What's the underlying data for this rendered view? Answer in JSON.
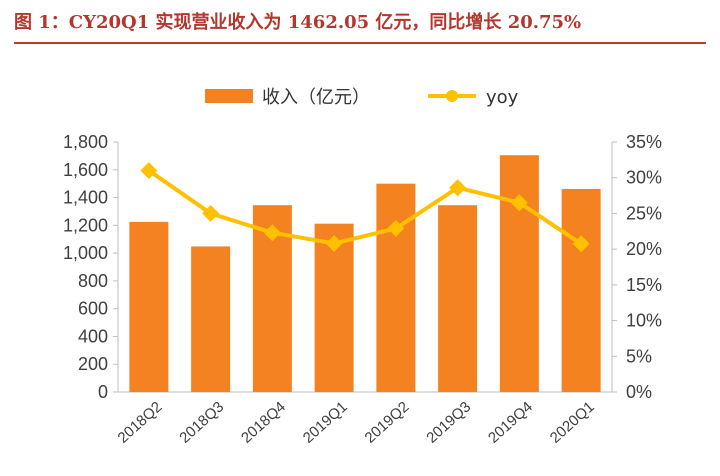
{
  "page": {
    "title": "图 1：CY20Q1 实现营业收入为 1462.05 亿元，同比增长 20.75%"
  },
  "chart_data": {
    "type": "bar",
    "categories": [
      "2018Q2",
      "2018Q3",
      "2018Q4",
      "2019Q1",
      "2019Q2",
      "2019Q3",
      "2019Q4",
      "2020Q1"
    ],
    "series": [
      {
        "name": "收入（亿元）",
        "type": "bar",
        "axis": "left",
        "color": "#f58220",
        "values": [
          1225,
          1048,
          1345,
          1212,
          1500,
          1345,
          1705,
          1462.05
        ]
      },
      {
        "name": "yoy",
        "type": "line",
        "axis": "right",
        "color": "#ffc000",
        "values": [
          31.0,
          25.0,
          22.3,
          20.8,
          22.9,
          28.6,
          26.5,
          20.75
        ]
      }
    ],
    "left_axis": {
      "ylim": [
        0,
        1800
      ],
      "ticks": [
        0,
        200,
        400,
        600,
        800,
        1000,
        1200,
        1400,
        1600,
        1800
      ],
      "tick_labels": [
        "0",
        "200",
        "400",
        "600",
        "800",
        "1,000",
        "1,200",
        "1,400",
        "1,600",
        "1,800"
      ]
    },
    "right_axis": {
      "ylim": [
        0,
        35
      ],
      "ticks": [
        0,
        5,
        10,
        15,
        20,
        25,
        30,
        35
      ],
      "tick_labels": [
        "0%",
        "5%",
        "10%",
        "15%",
        "20%",
        "25%",
        "30%",
        "35%"
      ]
    },
    "grid": false,
    "legend_position": "top-center"
  }
}
